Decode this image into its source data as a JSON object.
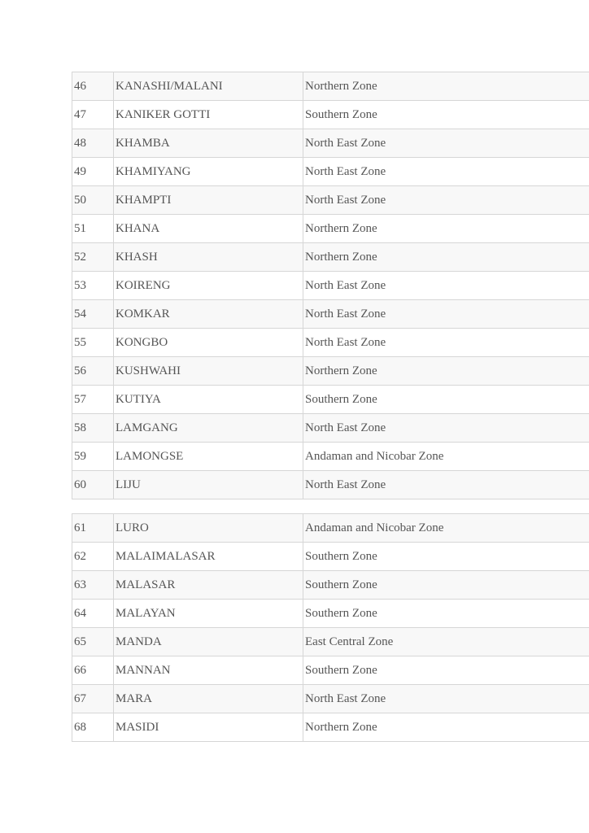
{
  "tables": [
    {
      "rows": [
        [
          "46",
          "KANASHI/MALANI",
          "Northern Zone"
        ],
        [
          "47",
          "KANIKER GOTTI",
          "Southern Zone"
        ],
        [
          "48",
          "KHAMBA",
          "North East Zone"
        ],
        [
          "49",
          "KHAMIYANG",
          "North East Zone"
        ],
        [
          "50",
          "KHAMPTI",
          "North East Zone"
        ],
        [
          "51",
          "KHANA",
          "Northern Zone"
        ],
        [
          "52",
          "KHASH",
          "Northern Zone"
        ],
        [
          "53",
          "KOIRENG",
          "North East Zone"
        ],
        [
          "54",
          "KOMKAR",
          "North East Zone"
        ],
        [
          "55",
          "KONGBO",
          "North East Zone"
        ],
        [
          "56",
          "KUSHWAHI",
          "Northern Zone"
        ],
        [
          "57",
          "KUTIYA",
          "Southern Zone"
        ],
        [
          "58",
          "LAMGANG",
          "North East Zone"
        ],
        [
          "59",
          "LAMONGSE",
          "Andaman and Nicobar Zone"
        ],
        [
          "60",
          "LIJU",
          "North East Zone"
        ]
      ]
    },
    {
      "rows": [
        [
          "61",
          "LURO",
          "Andaman and Nicobar Zone"
        ],
        [
          "62",
          "MALAIMALASAR",
          "Southern Zone"
        ],
        [
          "63",
          "MALASAR",
          "Southern Zone"
        ],
        [
          "64",
          "MALAYAN",
          "Southern Zone"
        ],
        [
          "65",
          "MANDA",
          "East Central Zone"
        ],
        [
          "66",
          "MANNAN",
          "Southern Zone"
        ],
        [
          "67",
          "MARA",
          "North East Zone"
        ],
        [
          "68",
          "MASIDI",
          "Northern Zone"
        ]
      ]
    }
  ]
}
